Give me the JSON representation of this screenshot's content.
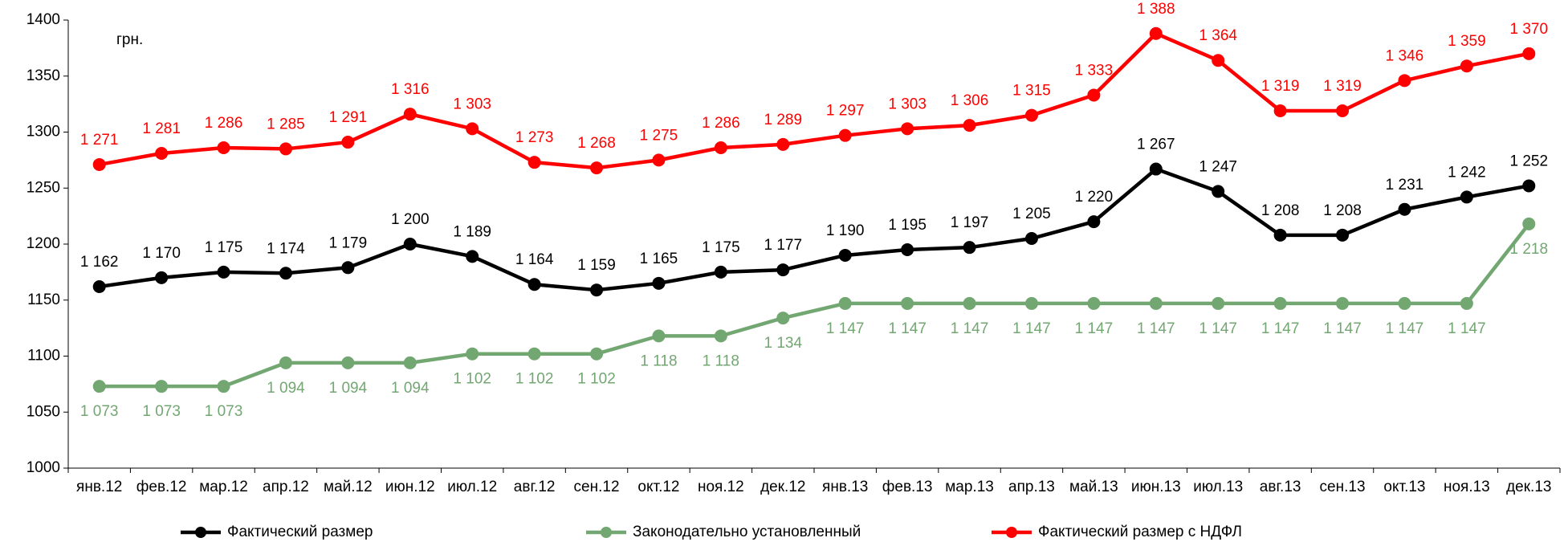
{
  "chart_data": {
    "type": "line",
    "annotation": "грн.",
    "categories": [
      "янв.12",
      "фев.12",
      "мар.12",
      "апр.12",
      "май.12",
      "июн.12",
      "июл.12",
      "авг.12",
      "сен.12",
      "окт.12",
      "ноя.12",
      "дек.12",
      "янв.13",
      "фев.13",
      "мар.13",
      "апр.13",
      "май.13",
      "июн.13",
      "июл.13",
      "авг.13",
      "сен.13",
      "окт.13",
      "ноя.13",
      "дек.13"
    ],
    "series": [
      {
        "name": "Фактический размер",
        "color": "#000000",
        "label_side": "above",
        "values": [
          1162,
          1170,
          1175,
          1174,
          1179,
          1200,
          1189,
          1164,
          1159,
          1165,
          1175,
          1177,
          1190,
          1195,
          1197,
          1205,
          1220,
          1267,
          1247,
          1208,
          1208,
          1231,
          1242,
          1252
        ],
        "value_labels": [
          "1 162",
          "1 170",
          "1 175",
          "1 174",
          "1 179",
          "1 200",
          "1 189",
          "1 164",
          "1 159",
          "1 165",
          "1 175",
          "1 177",
          "1 190",
          "1 195",
          "1 197",
          "1 205",
          "1 220",
          "1 267",
          "1 247",
          "1 208",
          "1 208",
          "1 231",
          "1 242",
          "1 252"
        ]
      },
      {
        "name": "Законодательно установленный",
        "color": "#72a772",
        "label_side": "below",
        "values": [
          1073,
          1073,
          1073,
          1094,
          1094,
          1094,
          1102,
          1102,
          1102,
          1118,
          1118,
          1134,
          1147,
          1147,
          1147,
          1147,
          1147,
          1147,
          1147,
          1147,
          1147,
          1147,
          1147,
          1218
        ],
        "value_labels": [
          "1 073",
          "1 073",
          "1 073",
          "1 094",
          "1 094",
          "1 094",
          "1 102",
          "1 102",
          "1 102",
          "1 118",
          "1 118",
          "1 134",
          "1 147",
          "1 147",
          "1 147",
          "1 147",
          "1 147",
          "1 147",
          "1 147",
          "1 147",
          "1 147",
          "1 147",
          "1 147",
          "1 218"
        ]
      },
      {
        "name": "Фактический размер с НДФЛ",
        "color": "#ff0000",
        "label_side": "above",
        "values": [
          1271,
          1281,
          1286,
          1285,
          1291,
          1316,
          1303,
          1273,
          1268,
          1275,
          1286,
          1289,
          1297,
          1303,
          1306,
          1315,
          1333,
          1388,
          1364,
          1319,
          1319,
          1346,
          1359,
          1370
        ],
        "value_labels": [
          "1 271",
          "1 281",
          "1 286",
          "1 285",
          "1 291",
          "1 316",
          "1 303",
          "1 273",
          "1 268",
          "1 275",
          "1 286",
          "1 289",
          "1 297",
          "1 303",
          "1 306",
          "1 315",
          "1 333",
          "1 388",
          "1 364",
          "1 319",
          "1 319",
          "1 346",
          "1 359",
          "1 370"
        ]
      }
    ],
    "ylim": [
      1000,
      1400
    ],
    "yticks": [
      1000,
      1050,
      1100,
      1150,
      1200,
      1250,
      1300,
      1350,
      1400
    ],
    "grid": false,
    "legend": "bottom"
  }
}
